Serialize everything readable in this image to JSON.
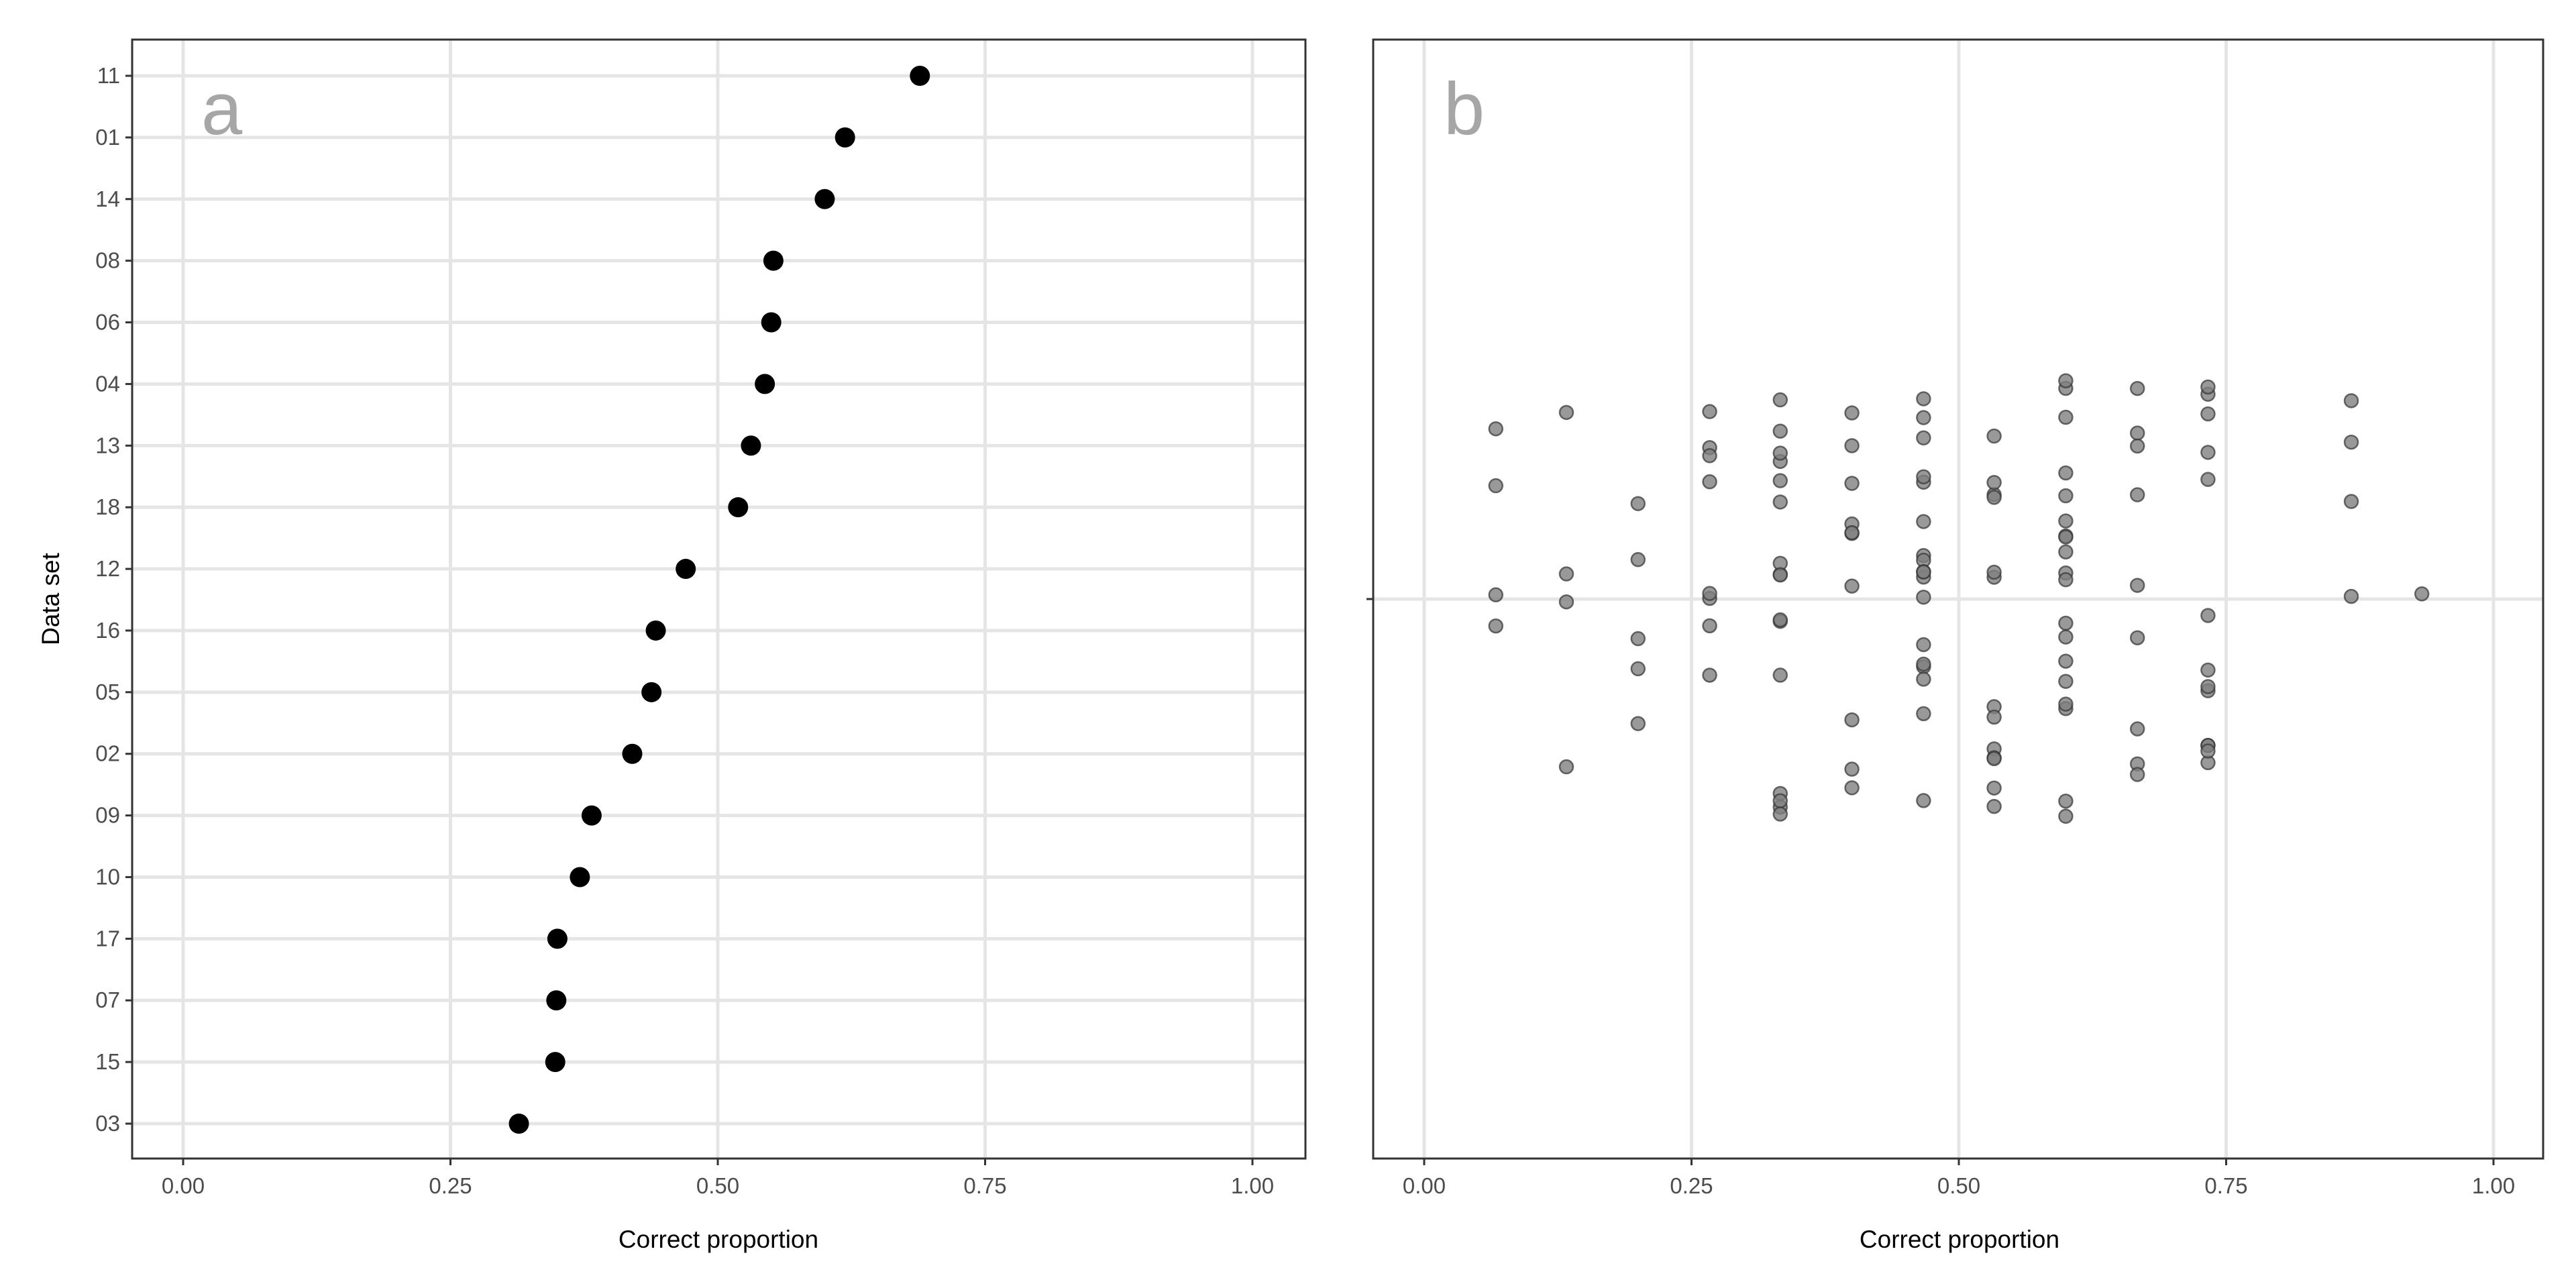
{
  "chart_data": [
    {
      "type": "scatter",
      "panel_tag": "a",
      "xlabel": "Correct proportion",
      "ylabel": "Data set",
      "xlim": [
        0,
        1
      ],
      "xticks": [
        "0.00",
        "0.25",
        "0.50",
        "0.75",
        "1.00"
      ],
      "grid": true,
      "categories": [
        "11",
        "01",
        "14",
        "08",
        "06",
        "04",
        "13",
        "18",
        "12",
        "16",
        "05",
        "02",
        "09",
        "10",
        "17",
        "07",
        "15",
        "03"
      ],
      "values": [
        0.689,
        0.619,
        0.6,
        0.552,
        0.55,
        0.544,
        0.531,
        0.519,
        0.47,
        0.442,
        0.438,
        0.42,
        0.382,
        0.371,
        0.35,
        0.349,
        0.348,
        0.314
      ],
      "point_color": "#000000"
    },
    {
      "type": "scatter",
      "panel_tag": "b",
      "xlabel": "Correct proportion",
      "ylabel": "",
      "xlim": [
        0,
        1
      ],
      "xticks": [
        "0.00",
        "0.25",
        "0.50",
        "0.75",
        "1.00"
      ],
      "grid": true,
      "jittered": true,
      "columns": [
        {
          "x": 0.067,
          "count": 4
        },
        {
          "x": 0.133,
          "count": 4
        },
        {
          "x": 0.2,
          "count": 5
        },
        {
          "x": 0.267,
          "count": 8
        },
        {
          "x": 0.333,
          "count": 16
        },
        {
          "x": 0.4,
          "count": 10
        },
        {
          "x": 0.467,
          "count": 18
        },
        {
          "x": 0.533,
          "count": 13
        },
        {
          "x": 0.6,
          "count": 19
        },
        {
          "x": 0.667,
          "count": 9
        },
        {
          "x": 0.733,
          "count": 13
        },
        {
          "x": 0.867,
          "count": 4
        },
        {
          "x": 0.933,
          "count": 1
        }
      ],
      "point_color": "#7f7f7f"
    }
  ],
  "colors": {
    "grid": "#e5e5e5",
    "tag": "#a6a6a6",
    "frame": "#333333"
  }
}
